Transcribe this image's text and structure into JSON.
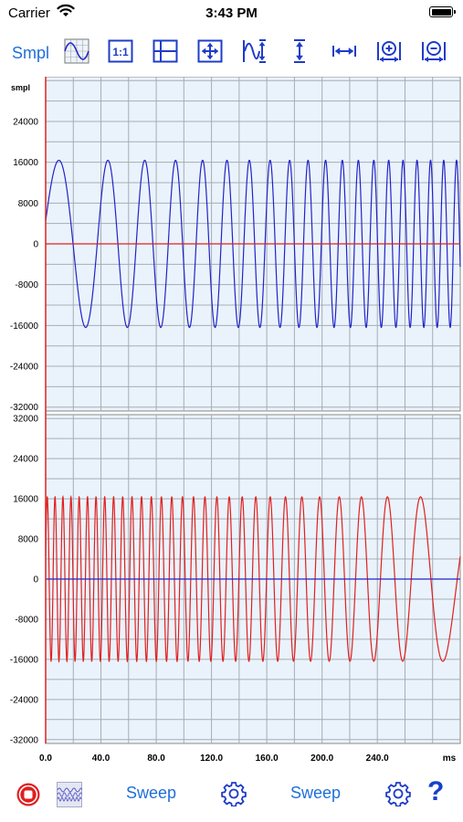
{
  "status_bar": {
    "carrier": "Carrier",
    "time": "3:43 PM"
  },
  "toolbar": {
    "smpl_label": "Smpl",
    "ratio_label": "1:1",
    "icons": [
      "sine-grid-icon",
      "ratio-1-1-icon",
      "split-panes-icon",
      "move-arrows-icon",
      "vertical-fit-wave-icon",
      "vertical-expand-icon",
      "horizontal-expand-icon",
      "zoom-in-horizontal-icon",
      "zoom-out-horizontal-icon"
    ],
    "accent_color": "#1f3cc8"
  },
  "chart_data": [
    {
      "type": "line",
      "ylabel": "smpl",
      "yticks": [
        24000,
        16000,
        8000,
        0,
        -8000,
        -16000,
        -24000,
        -32000
      ],
      "ylim": [
        -32768,
        32767
      ],
      "xlim": [
        0,
        300
      ],
      "grid": true,
      "series": [
        {
          "color": "#2323c8",
          "amplitude": 16384,
          "f_start_hz": 20,
          "f_end_hz": 110,
          "duration_ms": 300
        }
      ],
      "zero_line_color": "#e02020"
    },
    {
      "type": "line",
      "yticks": [
        32000,
        24000,
        16000,
        8000,
        0,
        -8000,
        -16000,
        -24000,
        -32000
      ],
      "ylim": [
        -32768,
        32767
      ],
      "xlim": [
        0,
        300
      ],
      "grid": true,
      "xticks": [
        "0.0",
        "40.0",
        "80.0",
        "120.0",
        "160.0",
        "200.0",
        "240.0"
      ],
      "xtick_values": [
        0,
        40,
        80,
        120,
        160,
        200,
        240
      ],
      "xunit": "ms",
      "series": [
        {
          "color": "#e02020",
          "amplitude": 16384,
          "f_start_hz": 180,
          "f_end_hz": 20,
          "duration_ms": 300
        }
      ],
      "zero_line_color": "#2323c8"
    }
  ],
  "bottom_bar": {
    "left_sweep_label": "Sweep",
    "right_sweep_label": "Sweep",
    "help_label": "?",
    "record_color": "#e02020"
  }
}
